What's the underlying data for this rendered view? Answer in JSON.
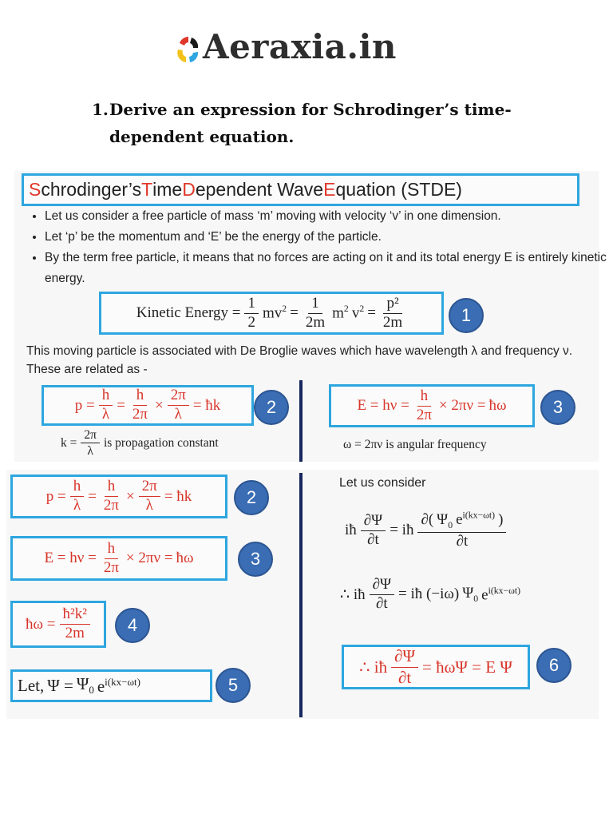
{
  "logo": {
    "text": "Aeraxia.in",
    "icon": "aeraxia-swirl-logo",
    "colors": [
      "#e0372a",
      "#1a1a1a",
      "#2ea6df",
      "#f2c21b"
    ]
  },
  "question": {
    "number": "1.",
    "line1": "Derive an expression for Schrodinger’s time-",
    "line2": "dependent equation."
  },
  "slide": {
    "title": [
      {
        "t": "S",
        "red": true
      },
      {
        "t": "chrodinger’s "
      },
      {
        "t": "T",
        "red": true
      },
      {
        "t": "ime "
      },
      {
        "t": "D",
        "red": true
      },
      {
        "t": "ependent Wave "
      },
      {
        "t": "E",
        "red": true
      },
      {
        "t": "quation (STDE)"
      }
    ],
    "bullets": [
      "Let us consider a free particle of mass ‘m’ moving  with velocity ‘v’ in one dimension.",
      "Let ‘p’ be the momentum and ‘E’ be the energy of the particle.",
      "By the term free particle, it means that no forces are acting on it and its total energy E is entirely kinetic energy."
    ],
    "paragraph": "This moving particle is associated with De Broglie waves which have wavelength λ and frequency ν. These are related as -",
    "eq1": [
      "Kinetic Energy =",
      {
        "n": "1",
        "d": "2"
      },
      {
        "b": "mv",
        "sup": "2"
      },
      "=",
      {
        "n": "1",
        "d": "2m"
      },
      {
        "b": "m",
        "sup": "2"
      },
      {
        "b": "v",
        "sup": "2"
      },
      "=",
      {
        "n": "p²",
        "d": "2m"
      }
    ],
    "eq2": [
      "p =",
      {
        "n": "h",
        "d": "λ"
      },
      "=",
      {
        "n": "h",
        "d": "2π"
      },
      "×",
      {
        "n": "2π",
        "d": "λ"
      },
      "= ħk"
    ],
    "eq3": [
      "E = hν =",
      {
        "n": "h",
        "d": "2π"
      },
      "× 2πν =",
      "ħω"
    ],
    "k_note": [
      "k =",
      {
        "n": "2π",
        "d": "λ"
      },
      "is propagation constant"
    ],
    "omega_note": [
      "ω = 2πν is angular frequency"
    ],
    "eq4": [
      "ħω =",
      {
        "n": "ħ²k²",
        "d": "2m"
      }
    ],
    "eq5": [
      "Let,",
      "Ψ =",
      {
        "b": "Ψ",
        "sub": "0"
      },
      {
        "b": "e",
        "sup": "i(kx−ωt)"
      }
    ],
    "consider": "Let us consider",
    "eq_r1": [
      "iħ",
      {
        "n": "∂Ψ",
        "d": "∂t"
      },
      "= iħ",
      {
        "n": [
          "∂(",
          {
            "b": "Ψ",
            "sub": "0"
          },
          {
            "b": "e",
            "sup": "i(kx−ωt)"
          },
          ")"
        ],
        "d": "∂t"
      }
    ],
    "eq_r2": [
      "∴ iħ",
      {
        "n": "∂Ψ",
        "d": "∂t"
      },
      "= iħ (−iω)",
      {
        "b": "Ψ",
        "sub": "0"
      },
      {
        "b": "e",
        "sup": "i(kx−ωt)"
      }
    ],
    "eq6": [
      "∴ iħ",
      {
        "n": "∂Ψ",
        "d": "∂t"
      },
      "= ħωΨ = E Ψ"
    ],
    "badges": [
      "1",
      "2",
      "3",
      "2",
      "3",
      "4",
      "5",
      "6"
    ],
    "colors": {
      "box_border": "#2ea6df",
      "badge": "#3a6db3",
      "accent_red": "#e0372a",
      "divider": "#17275f"
    }
  }
}
